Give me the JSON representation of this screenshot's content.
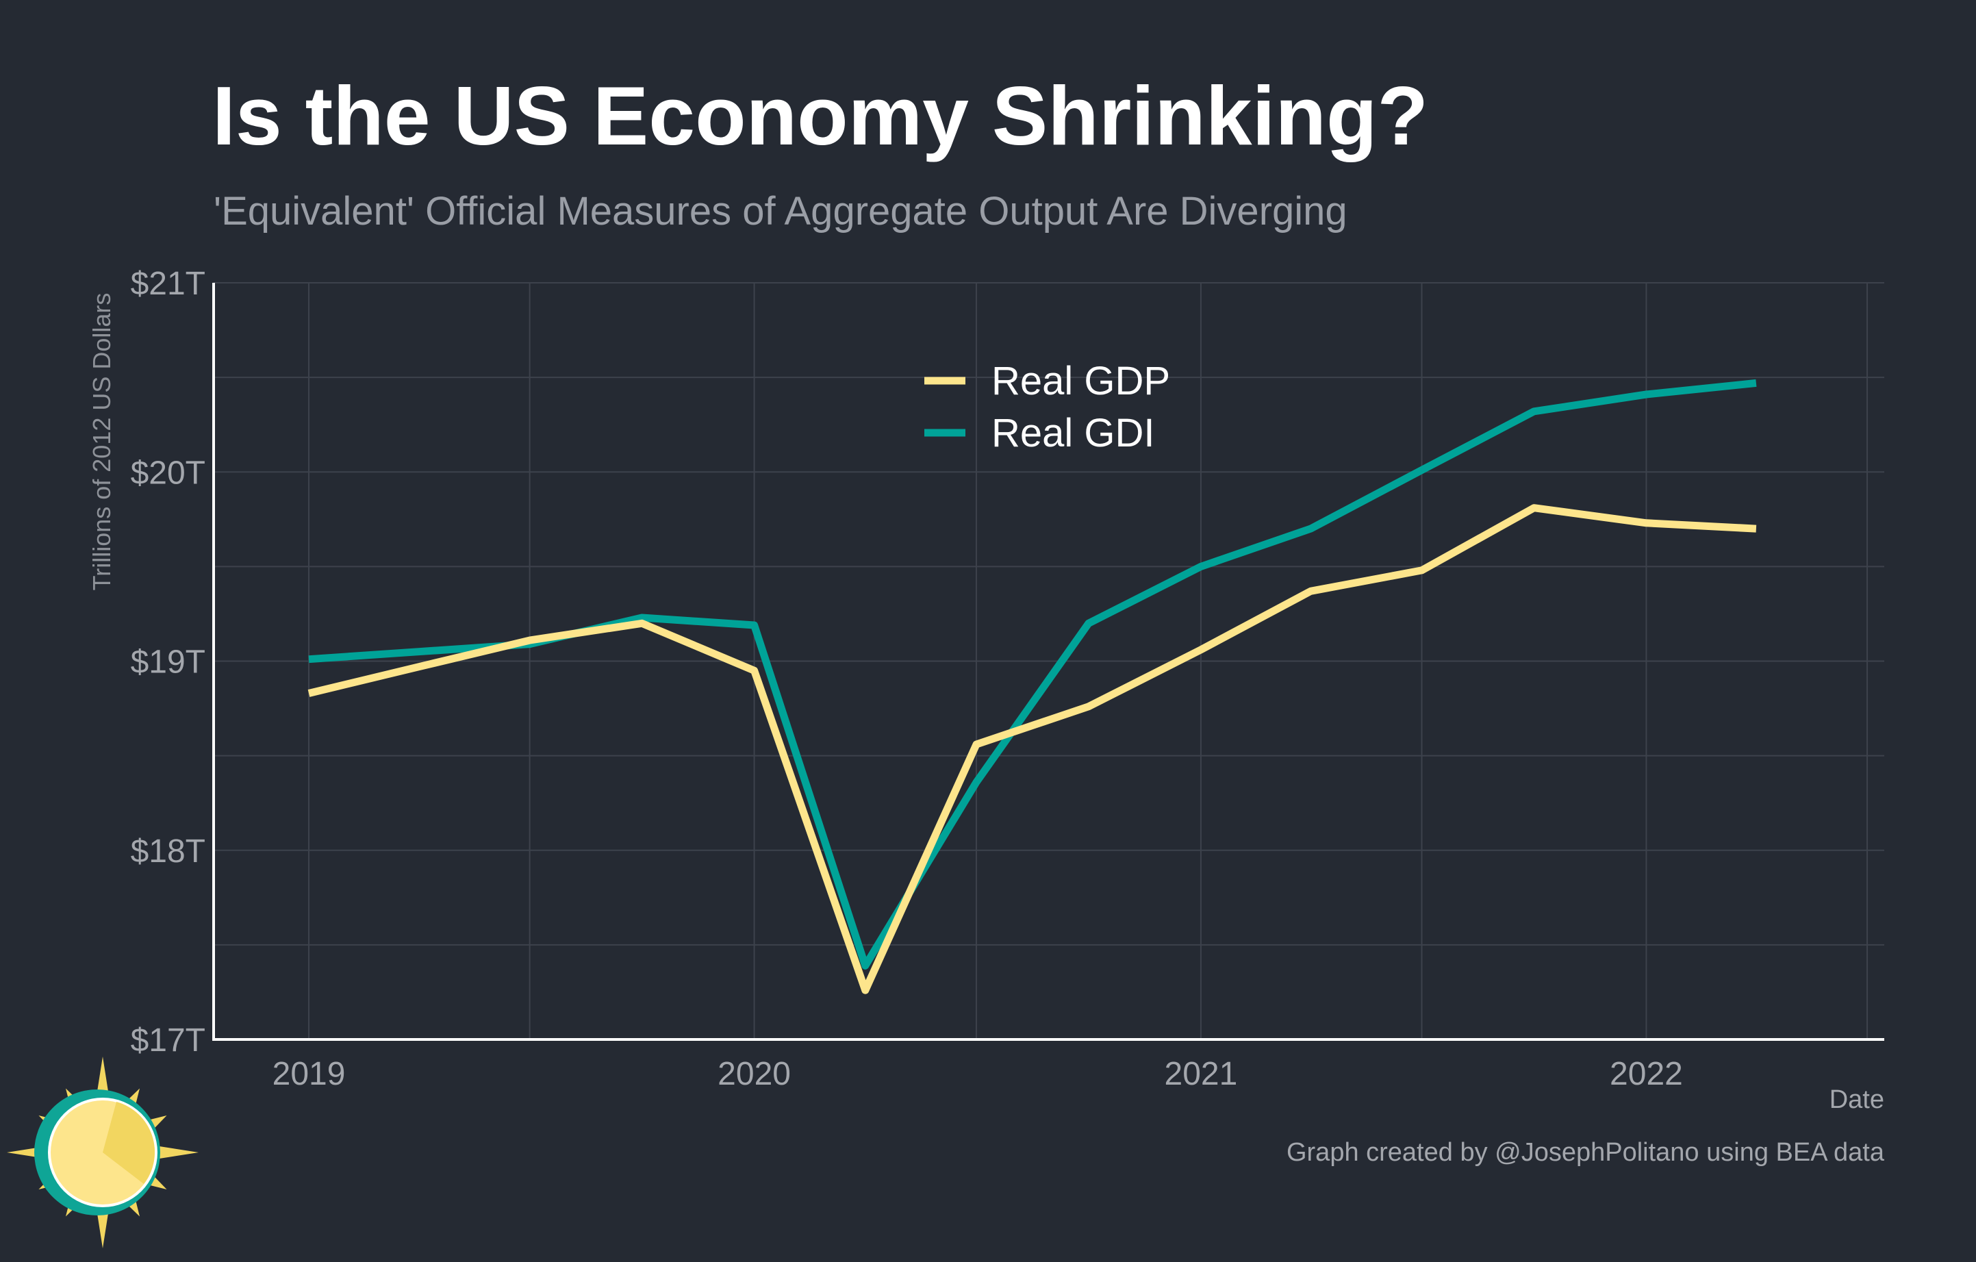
{
  "header": {
    "title": "Is the US Economy Shrinking?",
    "subtitle": "'Equivalent' Official Measures of Aggregate Output Are Diverging"
  },
  "caption": "Graph created by @JosephPolitano using BEA data",
  "logo": {
    "icon": "sun-icon",
    "colors": [
      "#0fa596",
      "#fde58c",
      "#f2d660"
    ]
  },
  "colors": {
    "background": "#252a33",
    "grid": "#3d424c",
    "axis": "#ffffff",
    "tick_text": "#a4a7ad",
    "series_gdp": "#fde58c",
    "series_gdi": "#00a398"
  },
  "chart_data": {
    "type": "line",
    "title": "Is the US Economy Shrinking?",
    "subtitle": "'Equivalent' Official Measures of Aggregate Output Are Diverging",
    "xlabel": "Date",
    "ylabel": "Trillions of 2012 US Dollars",
    "xlim": [
      "2018-10-15",
      "2022-07-15"
    ],
    "ylim": [
      17,
      21
    ],
    "x_ticks": [
      {
        "value": "2019-01-01",
        "label": "2019"
      },
      {
        "value": "2020-01-01",
        "label": "2020"
      },
      {
        "value": "2021-01-01",
        "label": "2021"
      },
      {
        "value": "2022-01-01",
        "label": "2022"
      }
    ],
    "y_ticks": [
      {
        "value": 17,
        "label": "$17T"
      },
      {
        "value": 18,
        "label": "$18T"
      },
      {
        "value": 19,
        "label": "$19T"
      },
      {
        "value": 20,
        "label": "$20T"
      },
      {
        "value": 21,
        "label": "$21T"
      }
    ],
    "grid": true,
    "legend": "top-center",
    "x": [
      "2019-01-01",
      "2019-04-01",
      "2019-07-01",
      "2019-10-01",
      "2020-01-01",
      "2020-04-01",
      "2020-07-01",
      "2020-10-01",
      "2021-01-01",
      "2021-04-01",
      "2021-07-01",
      "2021-10-01",
      "2022-01-01",
      "2022-04-01"
    ],
    "series": [
      {
        "name": "Real GDP",
        "color": "#fde58c",
        "values": [
          18.83,
          18.97,
          19.11,
          19.2,
          18.95,
          17.26,
          18.56,
          18.76,
          19.06,
          19.37,
          19.48,
          19.81,
          19.73,
          19.7
        ]
      },
      {
        "name": "Real GDI",
        "color": "#00a398",
        "values": [
          19.01,
          19.05,
          19.09,
          19.23,
          19.19,
          17.39,
          18.36,
          19.2,
          19.5,
          19.7,
          20.01,
          20.32,
          20.41,
          20.47
        ]
      }
    ]
  }
}
